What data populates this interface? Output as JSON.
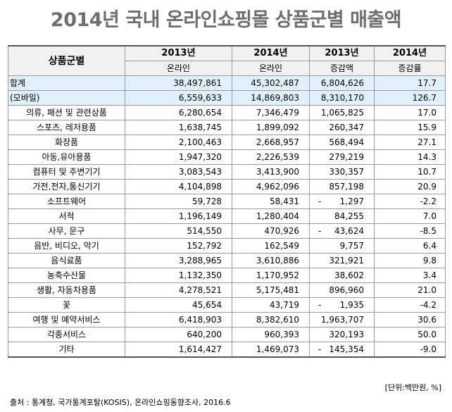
{
  "title": "2014년 국내 온라인쇼핑몰 상품군별 매출액",
  "table": {
    "group_header": "상품군별",
    "col_years": [
      "2013년",
      "2014년",
      "2013년",
      "2014년"
    ],
    "col_subheaders": [
      "온라인",
      "온라인",
      "증감액",
      "증감률"
    ],
    "total_rows": [
      {
        "name": "합계",
        "v2013": "38,497,861",
        "v2014": "45,302,487",
        "dash": "",
        "change": "6,804,626",
        "rate": "17.7"
      },
      {
        "name": "(모바일)",
        "v2013": "6,559,633",
        "v2014": "14,869,803",
        "dash": "",
        "change": "8,310,170",
        "rate": "126.7"
      }
    ],
    "rows": [
      {
        "name": "의류, 패션 및 관련상품",
        "v2013": "6,280,654",
        "v2014": "7,346,479",
        "dash": "",
        "change": "1,065,825",
        "rate": "17.0"
      },
      {
        "name": "스포츠, 레저용품",
        "v2013": "1,638,745",
        "v2014": "1,899,092",
        "dash": "",
        "change": "260,347",
        "rate": "15.9"
      },
      {
        "name": "화장품",
        "v2013": "2,100,463",
        "v2014": "2,668,957",
        "dash": "",
        "change": "568,494",
        "rate": "27.1"
      },
      {
        "name": "아동,유아용품",
        "v2013": "1,947,320",
        "v2014": "2,226,539",
        "dash": "",
        "change": "279,219",
        "rate": "14.3"
      },
      {
        "name": "컴퓨터 및 주변기기",
        "v2013": "3,083,543",
        "v2014": "3,413,900",
        "dash": "",
        "change": "330,357",
        "rate": "10.7"
      },
      {
        "name": "가전,전자,통신기기",
        "v2013": "4,104,898",
        "v2014": "4,962,096",
        "dash": "",
        "change": "857,198",
        "rate": "20.9"
      },
      {
        "name": "소프트웨어",
        "v2013": "59,728",
        "v2014": "58,431",
        "dash": "-",
        "change": "1,297",
        "rate": "-2.2"
      },
      {
        "name": "서적",
        "v2013": "1,196,149",
        "v2014": "1,280,404",
        "dash": "",
        "change": "84,255",
        "rate": "7.0"
      },
      {
        "name": "사무, 문구",
        "v2013": "514,550",
        "v2014": "470,926",
        "dash": "-",
        "change": "43,624",
        "rate": "-8.5"
      },
      {
        "name": "음반, 비디오, 악기",
        "v2013": "152,792",
        "v2014": "162,549",
        "dash": "",
        "change": "9,757",
        "rate": "6.4"
      },
      {
        "name": "음식료품",
        "v2013": "3,288,965",
        "v2014": "3,610,886",
        "dash": "",
        "change": "321,921",
        "rate": "9.8"
      },
      {
        "name": "농축수산물",
        "v2013": "1,132,350",
        "v2014": "1,170,952",
        "dash": "",
        "change": "38,602",
        "rate": "3.4"
      },
      {
        "name": "생활, 자동차용품",
        "v2013": "4,278,521",
        "v2014": "5,175,481",
        "dash": "",
        "change": "896,960",
        "rate": "21.0"
      },
      {
        "name": "꽃",
        "v2013": "45,654",
        "v2014": "43,719",
        "dash": "-",
        "change": "1,935",
        "rate": "-4.2"
      },
      {
        "name": "여행 및 예약서비스",
        "v2013": "6,418,903",
        "v2014": "8,382,610",
        "dash": "",
        "change": "1,963,707",
        "rate": "30.6"
      },
      {
        "name": "각종서비스",
        "v2013": "640,200",
        "v2014": "960,393",
        "dash": "",
        "change": "320,193",
        "rate": "50.0"
      },
      {
        "name": "기타",
        "v2013": "1,614,427",
        "v2014": "1,469,073",
        "dash": "-",
        "change": "145,354",
        "rate": "-9.0"
      }
    ]
  },
  "unit_note": "[단위:백만원, %]",
  "source": "출처 : 통계청, 국가통계포탈(KOSIS), 온라인쇼핑동향조사, 2016.6"
}
